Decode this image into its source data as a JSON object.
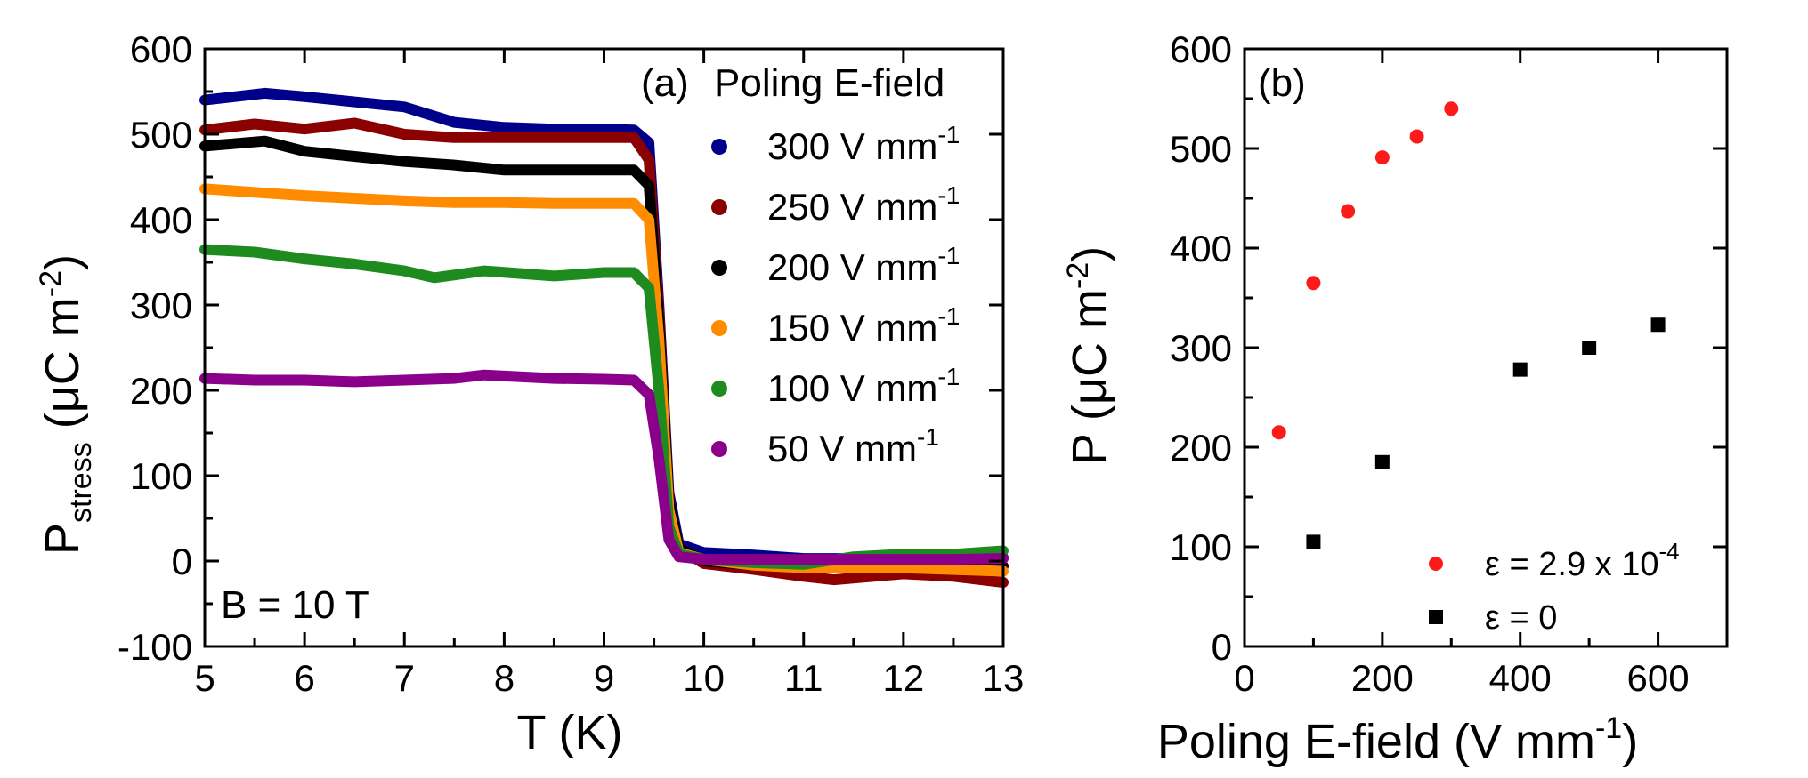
{
  "chart_data": [
    {
      "type": "line",
      "panel_label": "(a)",
      "legend_title": "Poling E-field",
      "annotation": "B = 10 T",
      "xlabel": "T (K)",
      "ylabel_main": "P",
      "ylabel_sub": "stress",
      "ylabel_unit": "(μC m",
      "ylabel_exp": "-2",
      "ylabel_close": ")",
      "xlim": [
        5,
        13
      ],
      "ylim": [
        -100,
        600
      ],
      "xticks": [
        "5",
        "6",
        "7",
        "8",
        "9",
        "10",
        "11",
        "12",
        "13"
      ],
      "yticks": [
        "-100",
        "0",
        "100",
        "200",
        "300",
        "400",
        "500",
        "600"
      ],
      "legend_placement": "top-right",
      "series": [
        {
          "name": "300 V mm",
          "exp": "-1",
          "color": "#00008B",
          "x": [
            5,
            5.6,
            6,
            7,
            7.5,
            8,
            8.5,
            9,
            9.3,
            9.45,
            9.55,
            9.65,
            9.75,
            10,
            10.5,
            11,
            11.5,
            12,
            12.5,
            13
          ],
          "y": [
            540,
            548,
            544,
            532,
            514,
            508,
            506,
            506,
            505,
            490,
            300,
            80,
            20,
            10,
            7,
            3,
            3,
            3,
            4,
            4
          ]
        },
        {
          "name": "250 V mm",
          "exp": "-1",
          "color": "#8B0000",
          "x": [
            5,
            5.5,
            6,
            6.5,
            7,
            7.5,
            8,
            8.5,
            9,
            9.3,
            9.45,
            9.55,
            9.65,
            9.75,
            10,
            10.5,
            11,
            11.3,
            12,
            12.5,
            13
          ],
          "y": [
            505,
            512,
            506,
            513,
            500,
            496,
            496,
            496,
            496,
            496,
            470,
            290,
            70,
            15,
            -3,
            -10,
            -18,
            -22,
            -15,
            -18,
            -25
          ]
        },
        {
          "name": "200 V mm",
          "exp": "-1",
          "color": "#000000",
          "x": [
            5,
            5.6,
            6,
            6.5,
            7,
            7.5,
            8,
            8.5,
            9,
            9.3,
            9.45,
            9.55,
            9.65,
            9.75,
            10,
            10.5,
            11,
            12,
            13
          ],
          "y": [
            486,
            492,
            480,
            474,
            468,
            464,
            458,
            458,
            458,
            458,
            440,
            280,
            70,
            15,
            0,
            -5,
            -8,
            -4,
            -6
          ]
        },
        {
          "name": "150 V mm",
          "exp": "-1",
          "color": "#FF8C00",
          "x": [
            5,
            5.5,
            6,
            7,
            7.5,
            8,
            8.5,
            9,
            9.3,
            9.45,
            9.55,
            9.65,
            9.75,
            10,
            10.5,
            11,
            12,
            13
          ],
          "y": [
            436,
            432,
            428,
            422,
            420,
            420,
            419,
            419,
            419,
            400,
            260,
            60,
            10,
            2,
            -5,
            -8,
            -8,
            -12
          ]
        },
        {
          "name": "100 V mm",
          "exp": "-1",
          "color": "#1E8B1E",
          "x": [
            5,
            5.5,
            6,
            6.5,
            7,
            7.3,
            7.8,
            8.5,
            9,
            9.3,
            9.45,
            9.55,
            9.65,
            9.75,
            10,
            10.5,
            11,
            11.5,
            12,
            12.5,
            13
          ],
          "y": [
            365,
            362,
            354,
            348,
            340,
            332,
            340,
            334,
            338,
            338,
            320,
            200,
            40,
            8,
            2,
            -2,
            -4,
            5,
            8,
            8,
            12
          ]
        },
        {
          "name": " 50 V mm",
          "exp": "-1",
          "color": "#8B008B",
          "x": [
            5,
            5.5,
            6,
            6.5,
            7,
            7.5,
            7.8,
            8.5,
            9,
            9.3,
            9.45,
            9.55,
            9.65,
            9.75,
            10,
            10.5,
            11,
            11.5,
            12,
            12.5,
            13
          ],
          "y": [
            214,
            212,
            212,
            210,
            212,
            214,
            218,
            214,
            213,
            212,
            195,
            120,
            25,
            5,
            2,
            2,
            2,
            2,
            2,
            2,
            3
          ]
        }
      ]
    },
    {
      "type": "scatter",
      "panel_label": "(b)",
      "xlabel_main": "Poling E-field (V mm",
      "xlabel_exp": "-1",
      "xlabel_close": ")",
      "ylabel_main": "P (μC m",
      "ylabel_exp": "-2",
      "ylabel_close": ")",
      "xlim": [
        0,
        700
      ],
      "ylim": [
        0,
        600
      ],
      "xticks": [
        "0",
        "200",
        "400",
        "600"
      ],
      "yticks": [
        "0",
        "100",
        "200",
        "300",
        "400",
        "500",
        "600"
      ],
      "legend_placement": "bottom-right",
      "series": [
        {
          "name": "ε = 2.9 x 10",
          "exp": "-4",
          "color": "#FF1A1A",
          "marker": "circle",
          "x": [
            50,
            100,
            150,
            200,
            250,
            300
          ],
          "y": [
            215,
            365,
            437,
            491,
            512,
            540
          ]
        },
        {
          "name": "ε = 0",
          "exp": "",
          "color": "#000000",
          "marker": "square",
          "x": [
            100,
            200,
            400,
            500,
            600
          ],
          "y": [
            105,
            185,
            278,
            300,
            323
          ]
        }
      ]
    }
  ]
}
